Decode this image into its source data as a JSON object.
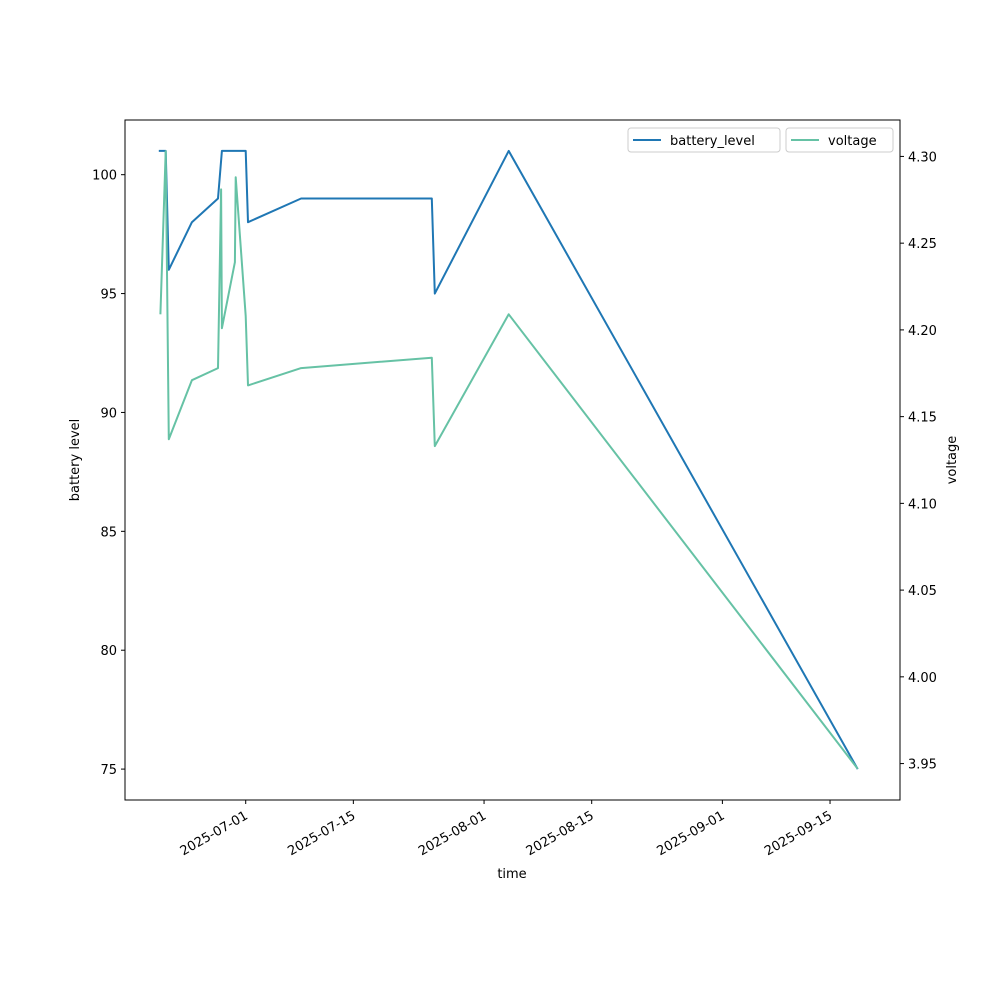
{
  "chart_data": {
    "type": "line",
    "title": "",
    "xlabel": "time",
    "ylabel": "battery level",
    "ylabel_right": "voltage",
    "x_unit": "days since 2025-07-01",
    "xlim": [
      -15.7,
      85.1
    ],
    "ylim": [
      73.7,
      102.3
    ],
    "ylim_right": [
      3.929,
      4.321
    ],
    "x_ticks": [
      {
        "value": 0,
        "label": "2025-07-01"
      },
      {
        "value": 14,
        "label": "2025-07-15"
      },
      {
        "value": 31,
        "label": "2025-08-01"
      },
      {
        "value": 45,
        "label": "2025-08-15"
      },
      {
        "value": 62,
        "label": "2025-09-01"
      },
      {
        "value": 76,
        "label": "2025-09-15"
      }
    ],
    "y_ticks": [
      {
        "value": 75,
        "label": "75"
      },
      {
        "value": 80,
        "label": "80"
      },
      {
        "value": 85,
        "label": "85"
      },
      {
        "value": 90,
        "label": "90"
      },
      {
        "value": 95,
        "label": "95"
      },
      {
        "value": 100,
        "label": "100"
      }
    ],
    "y_ticks_right": [
      {
        "value": 3.95,
        "label": "3.95"
      },
      {
        "value": 4.0,
        "label": "4.00"
      },
      {
        "value": 4.05,
        "label": "4.05"
      },
      {
        "value": 4.1,
        "label": "4.10"
      },
      {
        "value": 4.15,
        "label": "4.15"
      },
      {
        "value": 4.2,
        "label": "4.20"
      },
      {
        "value": 4.25,
        "label": "4.25"
      },
      {
        "value": 4.3,
        "label": "4.30"
      }
    ],
    "grid": false,
    "legend_placement": "top-right",
    "series": [
      {
        "name": "battery_level",
        "axis": "left",
        "color": "#1f77b4",
        "x": [
          -11.3,
          -10.4,
          -10.0,
          -7.0,
          -3.6,
          -3.1,
          0.0,
          0.3,
          7.2,
          24.2,
          24.6,
          34.2,
          79.6
        ],
        "y": [
          101,
          101,
          96,
          98,
          99,
          101,
          101,
          98,
          99,
          99,
          95,
          101,
          75
        ]
      },
      {
        "name": "voltage",
        "axis": "right",
        "color": "#66c2a5",
        "x": [
          -11.1,
          -10.4,
          -10.0,
          -7.0,
          -3.6,
          -3.2,
          -3.1,
          -1.4,
          -1.3,
          0.0,
          0.3,
          7.2,
          24.2,
          24.6,
          34.2,
          79.6
        ],
        "y": [
          4.209,
          4.303,
          4.137,
          4.171,
          4.178,
          4.281,
          4.201,
          4.239,
          4.288,
          4.208,
          4.168,
          4.178,
          4.184,
          4.133,
          4.209,
          3.947
        ]
      }
    ]
  }
}
